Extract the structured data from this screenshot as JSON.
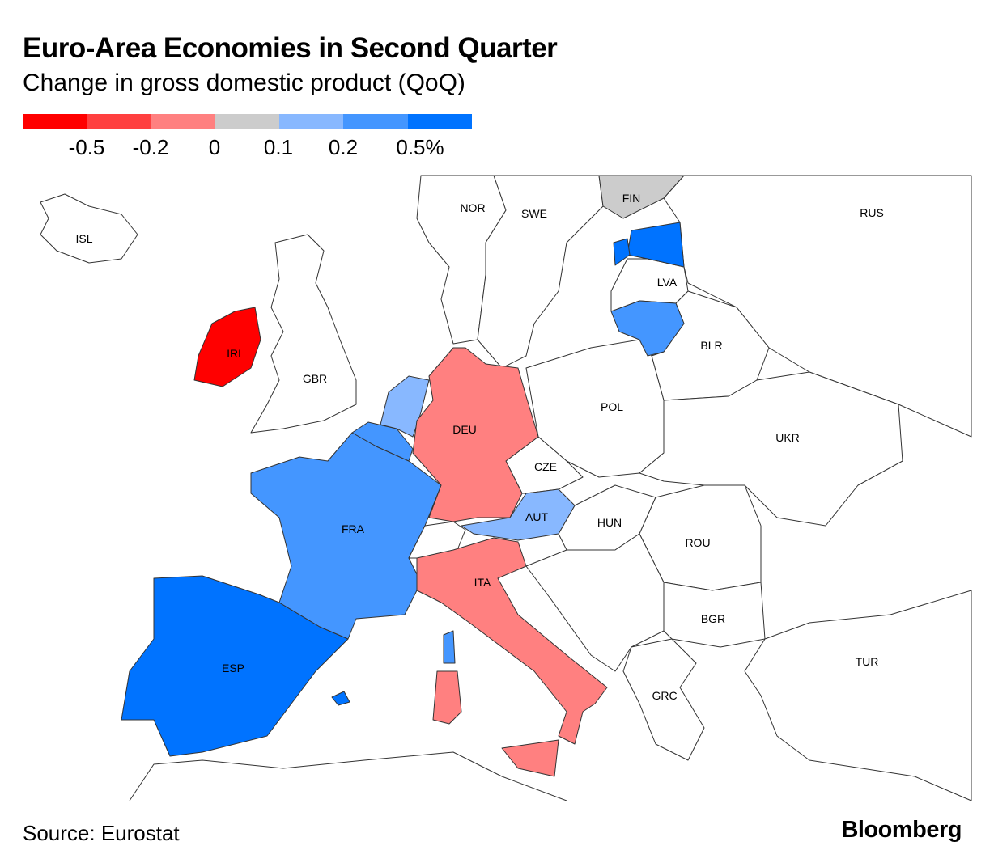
{
  "title": "Euro-Area Economies in Second Quarter",
  "subtitle": "Change in gross domestic product (QoQ)",
  "legend": {
    "colors": [
      "#ff0000",
      "#ff4040",
      "#ff8080",
      "#cccccc",
      "#88b8ff",
      "#4496ff",
      "#0073ff"
    ],
    "ticks": [
      "-0.5",
      "-0.2",
      "0",
      "0.1",
      "0.2",
      "0.5%"
    ]
  },
  "countries": {
    "IRL": {
      "label": "IRL",
      "color": "#ff0000"
    },
    "ESP": {
      "label": "ESP",
      "color": "#0073ff"
    },
    "FRA": {
      "label": "FRA",
      "color": "#4496ff"
    },
    "BEL": {
      "label": "",
      "color": "#4496ff"
    },
    "NLD": {
      "label": "",
      "color": "#88b8ff"
    },
    "DEU": {
      "label": "DEU",
      "color": "#ff8080"
    },
    "AUT": {
      "label": "AUT",
      "color": "#88b8ff"
    },
    "ITA": {
      "label": "ITA",
      "color": "#ff8080"
    },
    "EST": {
      "label": "",
      "color": "#0073ff"
    },
    "LTU": {
      "label": "",
      "color": "#4496ff"
    },
    "FIN": {
      "label": "FIN",
      "color": "#cccccc"
    },
    "LVA": {
      "label": "LVA",
      "color": "#ffffff"
    },
    "ISL": {
      "label": "ISL"
    },
    "NOR": {
      "label": "NOR"
    },
    "SWE": {
      "label": "SWE"
    },
    "RUS": {
      "label": "RUS"
    },
    "GBR": {
      "label": "GBR"
    },
    "BLR": {
      "label": "BLR"
    },
    "POL": {
      "label": "POL"
    },
    "UKR": {
      "label": "UKR"
    },
    "CZE": {
      "label": "CZE"
    },
    "HUN": {
      "label": "HUN"
    },
    "ROU": {
      "label": "ROU"
    },
    "BGR": {
      "label": "BGR"
    },
    "GRC": {
      "label": "GRC"
    },
    "TUR": {
      "label": "TUR"
    }
  },
  "source": "Source: Eurostat",
  "logo": "Bloomberg"
}
